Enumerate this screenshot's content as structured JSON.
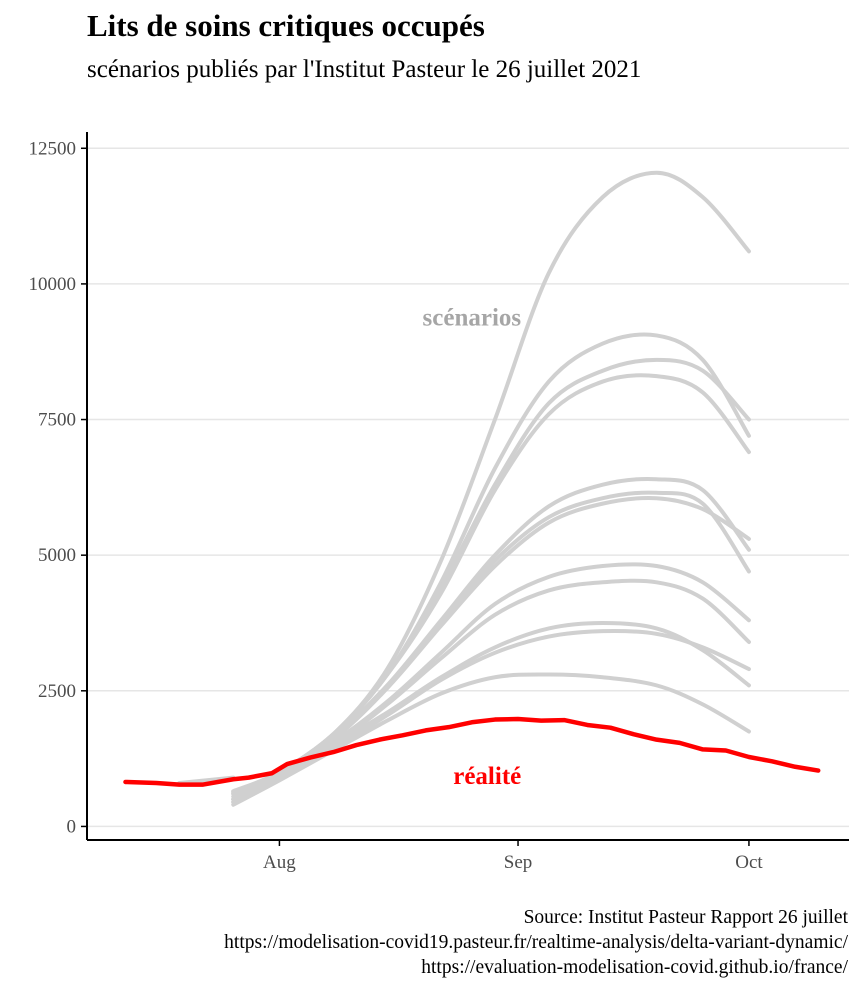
{
  "title": "Lits de soins critiques occupés",
  "subtitle": "scénarios publiés par l'Institut Pasteur le 26 juillet 2021",
  "caption": [
    "Source: Institut Pasteur Rapport 26 juillet",
    "https://modelisation-covid19.pasteur.fr/realtime-analysis/delta-variant-dynamic/",
    "https://evaluation-modelisation-covid.github.io/france/"
  ],
  "colors": {
    "scenario": "#d0d0d0",
    "reality": "#ff0000",
    "scenario_label": "#a6a6a6",
    "grid": "#e6e6e6",
    "axis": "#000000"
  },
  "chart_data": {
    "type": "line",
    "x_axis": {
      "ticks": [
        "2021-08-01",
        "2021-09-01",
        "2021-10-01"
      ],
      "tick_labels": [
        "Aug",
        "Sep",
        "Oct"
      ],
      "range": [
        "2021-07-07",
        "2021-10-14"
      ]
    },
    "y_axis": {
      "ticks": [
        0,
        2500,
        5000,
        7500,
        10000,
        12500
      ],
      "tick_labels": [
        "0",
        "2500",
        "5000",
        "7500",
        "10000",
        "12500"
      ],
      "range": [
        -250,
        12800
      ]
    },
    "grid": "horizontal",
    "annotations": [
      {
        "text": "scénarios",
        "x": "2021-08-26",
        "y": 9400,
        "color": "#a6a6a6"
      },
      {
        "text": "réalité",
        "x": "2021-08-28",
        "y": 950,
        "color": "#ff0000"
      }
    ],
    "series": [
      {
        "kind": "scenario",
        "x": [
          "2021-07-26",
          "2021-08-01",
          "2021-08-08",
          "2021-08-15",
          "2021-08-22",
          "2021-08-29",
          "2021-09-05",
          "2021-09-12",
          "2021-09-19",
          "2021-09-25",
          "2021-10-01"
        ],
        "y": [
          600,
          1000,
          1700,
          2900,
          4900,
          7500,
          10200,
          11600,
          12050,
          11600,
          10600
        ]
      },
      {
        "kind": "scenario",
        "x": [
          "2021-07-26",
          "2021-08-01",
          "2021-08-08",
          "2021-08-15",
          "2021-08-22",
          "2021-08-29",
          "2021-09-05",
          "2021-09-12",
          "2021-09-19",
          "2021-09-25",
          "2021-10-01"
        ],
        "y": [
          620,
          1000,
          1700,
          2800,
          4500,
          6600,
          8200,
          8900,
          9050,
          8600,
          7200
        ]
      },
      {
        "kind": "scenario",
        "x": [
          "2021-07-26",
          "2021-08-01",
          "2021-08-08",
          "2021-08-15",
          "2021-08-22",
          "2021-08-29",
          "2021-09-05",
          "2021-09-12",
          "2021-09-19",
          "2021-09-25",
          "2021-10-01"
        ],
        "y": [
          640,
          1000,
          1700,
          2800,
          4400,
          6300,
          7800,
          8400,
          8600,
          8400,
          7500
        ]
      },
      {
        "kind": "scenario",
        "x": [
          "2021-07-26",
          "2021-08-01",
          "2021-08-08",
          "2021-08-15",
          "2021-08-22",
          "2021-08-29",
          "2021-09-05",
          "2021-09-12",
          "2021-09-19",
          "2021-09-25",
          "2021-10-01"
        ],
        "y": [
          650,
          1000,
          1700,
          2800,
          4300,
          6200,
          7600,
          8200,
          8300,
          8000,
          6900
        ]
      },
      {
        "kind": "scenario",
        "x": [
          "2021-07-26",
          "2021-08-01",
          "2021-08-08",
          "2021-08-15",
          "2021-08-22",
          "2021-08-29",
          "2021-09-05",
          "2021-09-12",
          "2021-09-19",
          "2021-09-25",
          "2021-10-01"
        ],
        "y": [
          500,
          950,
          1650,
          2600,
          3800,
          5000,
          5900,
          6300,
          6400,
          6200,
          5100
        ]
      },
      {
        "kind": "scenario",
        "x": [
          "2021-07-26",
          "2021-08-01",
          "2021-08-08",
          "2021-08-15",
          "2021-08-22",
          "2021-08-29",
          "2021-09-05",
          "2021-09-12",
          "2021-09-19",
          "2021-09-25",
          "2021-10-01"
        ],
        "y": [
          550,
          950,
          1600,
          2550,
          3750,
          4900,
          5700,
          6050,
          6150,
          5950,
          4700
        ]
      },
      {
        "kind": "scenario",
        "x": [
          "2021-07-26",
          "2021-08-01",
          "2021-08-08",
          "2021-08-15",
          "2021-08-22",
          "2021-08-29",
          "2021-09-05",
          "2021-09-12",
          "2021-09-19",
          "2021-09-25",
          "2021-10-01"
        ],
        "y": [
          600,
          1000,
          1650,
          2550,
          3700,
          4800,
          5600,
          5950,
          6050,
          5850,
          5300
        ]
      },
      {
        "kind": "scenario",
        "x": [
          "2021-07-26",
          "2021-08-01",
          "2021-08-08",
          "2021-08-15",
          "2021-08-22",
          "2021-08-29",
          "2021-09-05",
          "2021-09-12",
          "2021-09-19",
          "2021-09-25",
          "2021-10-01"
        ],
        "y": [
          500,
          950,
          1550,
          2300,
          3200,
          4100,
          4600,
          4800,
          4800,
          4500,
          3800
        ]
      },
      {
        "kind": "scenario",
        "x": [
          "2021-07-26",
          "2021-08-01",
          "2021-08-08",
          "2021-08-15",
          "2021-08-22",
          "2021-08-29",
          "2021-09-05",
          "2021-09-12",
          "2021-09-19",
          "2021-09-25",
          "2021-10-01"
        ],
        "y": [
          450,
          900,
          1500,
          2250,
          3100,
          3900,
          4350,
          4500,
          4500,
          4200,
          3400
        ]
      },
      {
        "kind": "scenario",
        "x": [
          "2021-07-26",
          "2021-08-01",
          "2021-08-08",
          "2021-08-15",
          "2021-08-22",
          "2021-08-29",
          "2021-09-05",
          "2021-09-12",
          "2021-09-19",
          "2021-09-25",
          "2021-10-01"
        ],
        "y": [
          500,
          950,
          1500,
          2100,
          2750,
          3300,
          3650,
          3750,
          3650,
          3250,
          2600
        ]
      },
      {
        "kind": "scenario",
        "x": [
          "2021-07-26",
          "2021-08-01",
          "2021-08-08",
          "2021-08-15",
          "2021-08-22",
          "2021-08-29",
          "2021-09-05",
          "2021-09-12",
          "2021-09-19",
          "2021-09-25",
          "2021-10-01"
        ],
        "y": [
          450,
          900,
          1450,
          2050,
          2700,
          3200,
          3500,
          3600,
          3550,
          3300,
          2900
        ]
      },
      {
        "kind": "scenario",
        "x": [
          "2021-07-26",
          "2021-08-01",
          "2021-08-08",
          "2021-08-15",
          "2021-08-22",
          "2021-08-29",
          "2021-09-05",
          "2021-09-12",
          "2021-09-19",
          "2021-09-25",
          "2021-10-01"
        ],
        "y": [
          400,
          850,
          1400,
          1950,
          2450,
          2750,
          2800,
          2750,
          2600,
          2250,
          1750
        ]
      },
      {
        "kind": "scenario",
        "x": [
          "2021-07-19",
          "2021-07-26"
        ],
        "y": [
          800,
          900
        ]
      },
      {
        "kind": "reality",
        "name": "réalité",
        "x": [
          "2021-07-12",
          "2021-07-16",
          "2021-07-19",
          "2021-07-22",
          "2021-07-26",
          "2021-07-28",
          "2021-07-31",
          "2021-08-02",
          "2021-08-05",
          "2021-08-08",
          "2021-08-11",
          "2021-08-14",
          "2021-08-17",
          "2021-08-20",
          "2021-08-23",
          "2021-08-26",
          "2021-08-29",
          "2021-09-01",
          "2021-09-04",
          "2021-09-07",
          "2021-09-10",
          "2021-09-13",
          "2021-09-16",
          "2021-09-19",
          "2021-09-22",
          "2021-09-25",
          "2021-09-28",
          "2021-10-01",
          "2021-10-04",
          "2021-10-07",
          "2021-10-10"
        ],
        "y": [
          820,
          800,
          770,
          770,
          870,
          900,
          980,
          1150,
          1270,
          1370,
          1500,
          1600,
          1680,
          1770,
          1830,
          1920,
          1970,
          1980,
          1950,
          1960,
          1870,
          1820,
          1700,
          1600,
          1540,
          1420,
          1400,
          1280,
          1200,
          1100,
          1030
        ]
      }
    ]
  }
}
